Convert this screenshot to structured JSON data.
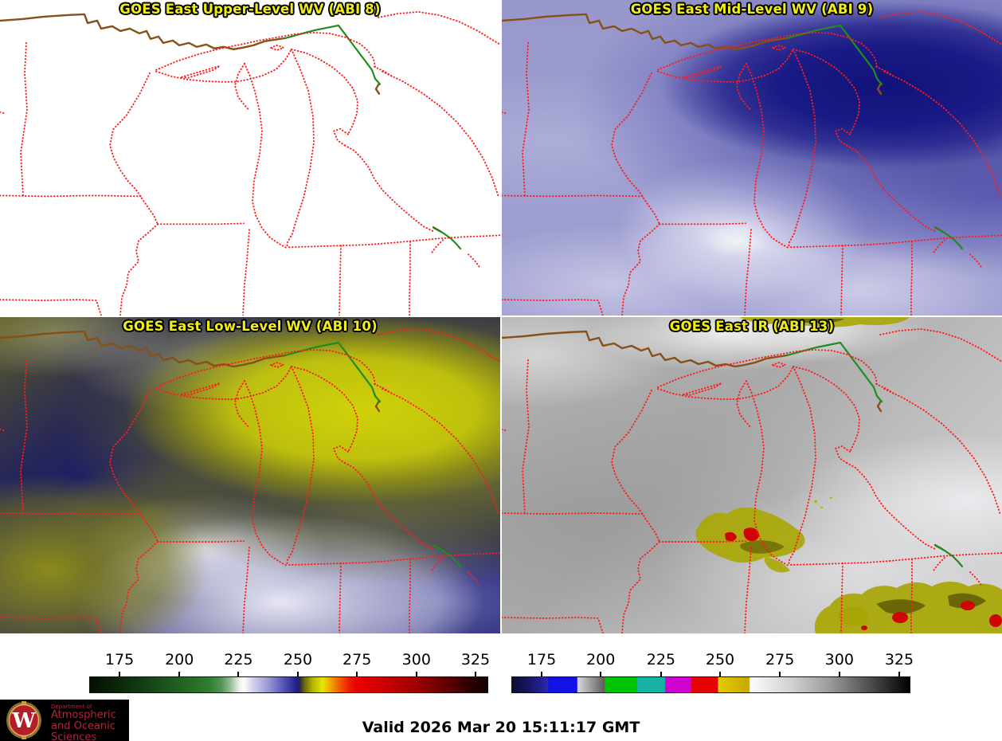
{
  "panels": [
    {
      "title": "GOES East Upper-Level WV (ABI 8)"
    },
    {
      "title": "GOES East Mid-Level WV (ABI 9)"
    },
    {
      "title": "GOES East Low-Level WV (ABI 10)"
    },
    {
      "title": "GOES East IR (ABI 13)"
    }
  ],
  "colorbars": {
    "left": {
      "ticks": [
        "175",
        "200",
        "225",
        "250",
        "275",
        "300",
        "325"
      ],
      "tick_positions_pct": [
        7.6,
        22.6,
        37.4,
        52.3,
        67.1,
        82.0,
        96.8
      ],
      "stops": [
        [
          0,
          "#031003"
        ],
        [
          7.6,
          "#0c280c"
        ],
        [
          15,
          "#164416"
        ],
        [
          22.6,
          "#206220"
        ],
        [
          30,
          "#2f7e2f"
        ],
        [
          33,
          "#549254"
        ],
        [
          35.5,
          "#9cc09c"
        ],
        [
          37.4,
          "#e6eee6"
        ],
        [
          38.6,
          "#ffffff"
        ],
        [
          41,
          "#d2d2ec"
        ],
        [
          45,
          "#9696d4"
        ],
        [
          49,
          "#5050b4"
        ],
        [
          52,
          "#1e1e88"
        ],
        [
          52.8,
          "#26264a"
        ],
        [
          54,
          "#6a6a0a"
        ],
        [
          56,
          "#b4b406"
        ],
        [
          58.5,
          "#e6e604"
        ],
        [
          60.5,
          "#f0a600"
        ],
        [
          63,
          "#f05800"
        ],
        [
          65.5,
          "#ee1600"
        ],
        [
          67.1,
          "#ea0000"
        ],
        [
          74,
          "#cc0000"
        ],
        [
          82,
          "#9e0000"
        ],
        [
          90,
          "#5e0000"
        ],
        [
          96.8,
          "#220000"
        ],
        [
          100,
          "#140000"
        ]
      ]
    },
    "right": {
      "ticks": [
        "175",
        "200",
        "225",
        "250",
        "275",
        "300",
        "325"
      ],
      "tick_positions_pct": [
        7.6,
        22.4,
        37.5,
        52.3,
        67.3,
        82.2,
        97.2
      ],
      "stops": [
        [
          0,
          "#0d0d3a"
        ],
        [
          4,
          "#16165e"
        ],
        [
          9,
          "#2828ae"
        ],
        [
          9.2,
          "#1212e0"
        ],
        [
          16.3,
          "#1212e8"
        ],
        [
          16.5,
          "#d8d8d8"
        ],
        [
          23.2,
          "#5e5e5e"
        ],
        [
          23.4,
          "#00c400"
        ],
        [
          31.3,
          "#00c400"
        ],
        [
          31.5,
          "#16b2a2"
        ],
        [
          38.4,
          "#16b2a2"
        ],
        [
          38.6,
          "#d002d0"
        ],
        [
          45.0,
          "#d002d0"
        ],
        [
          45.2,
          "#e40202"
        ],
        [
          51.7,
          "#e40202"
        ],
        [
          51.9,
          "#e2cc02"
        ],
        [
          59.6,
          "#c8a802"
        ],
        [
          59.9,
          "#fcfcfc"
        ],
        [
          70,
          "#d2d2d2"
        ],
        [
          80,
          "#9a9a9a"
        ],
        [
          90,
          "#4e4e4e"
        ],
        [
          100,
          "#000000"
        ]
      ]
    }
  },
  "footer": {
    "valid": "Valid 2026 Mar 20 15:11:17 GMT"
  },
  "logo": {
    "line0": "Department of",
    "line1": "Atmospheric",
    "line2": "and Oceanic Sciences",
    "monogram": "W"
  },
  "colors": {
    "title_text": "#f2ee12",
    "state_borders": "#ff1c1c",
    "canada_border": "#875016",
    "rivers": "#1f8c1f",
    "logo_text": "#b32638",
    "logo_bg": "#000000"
  }
}
